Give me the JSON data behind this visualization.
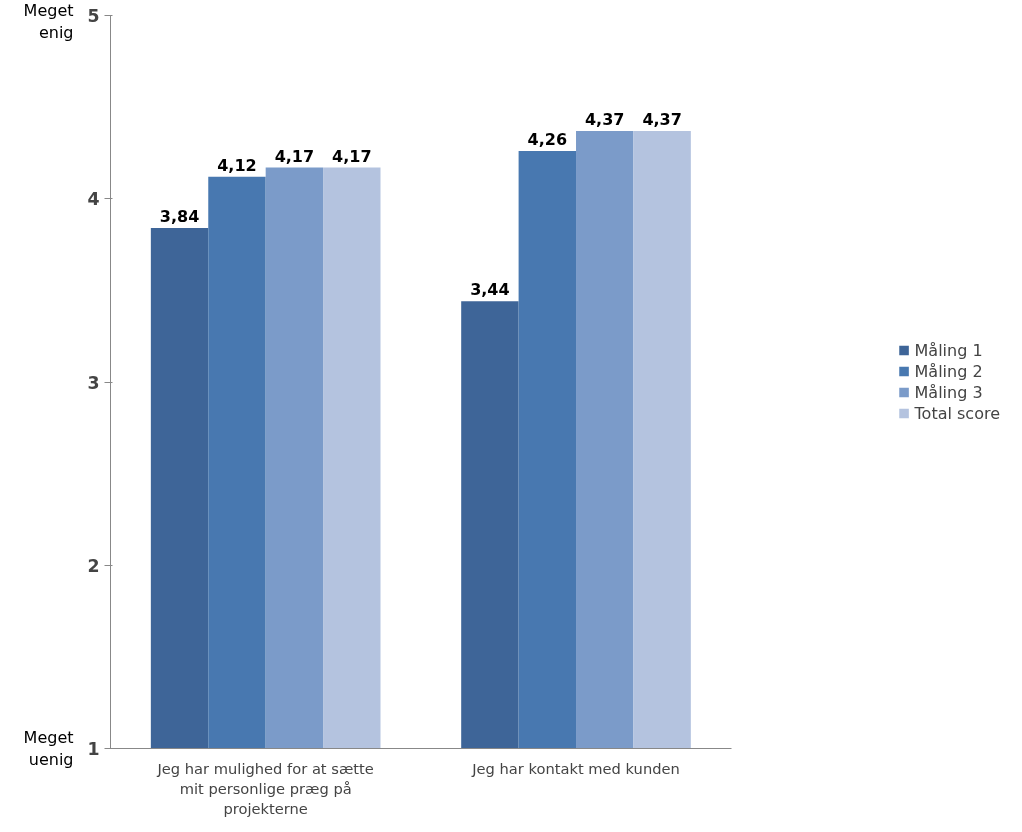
{
  "chart_data": {
    "type": "bar",
    "categories": [
      "Jeg har mulighed for at sætte mit personlige præg på projekterne",
      "Jeg har kontakt med kunden"
    ],
    "series": [
      {
        "name": "Måling 1",
        "color": "#3e6598",
        "values": [
          3.84,
          3.44
        ],
        "value_labels": [
          "3,84",
          "3,44"
        ]
      },
      {
        "name": "Måling 2",
        "color": "#4878b0",
        "values": [
          4.12,
          4.26
        ],
        "value_labels": [
          "4,12",
          "4,26"
        ]
      },
      {
        "name": "Måling 3",
        "color": "#7b9bc9",
        "values": [
          4.17,
          4.37
        ],
        "value_labels": [
          "4,17",
          "4,37"
        ]
      },
      {
        "name": "Total score",
        "color": "#b4c3df",
        "values": [
          4.17,
          4.37
        ],
        "value_labels": [
          "4,17",
          "4,37"
        ]
      }
    ],
    "ylim": [
      1,
      5
    ],
    "yticks": [
      1,
      2,
      3,
      4,
      5
    ],
    "annotations": [
      "Meget enig",
      "Meget uenig"
    ],
    "legend": "right",
    "grid": false
  }
}
